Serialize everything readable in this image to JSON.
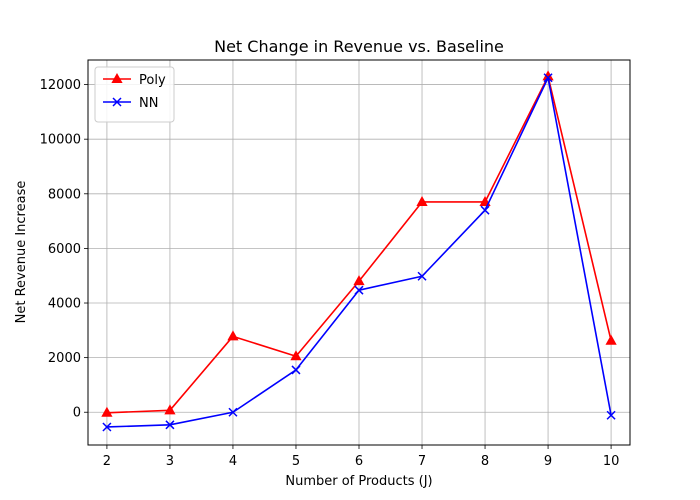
{
  "chart_data": {
    "type": "line",
    "title": "Net Change in Revenue vs. Baseline",
    "xlabel": "Number of Products (J)",
    "ylabel": "Net Revenue Increase",
    "x": [
      2,
      3,
      4,
      5,
      6,
      7,
      8,
      9,
      10
    ],
    "xlim": [
      1.7,
      10.3
    ],
    "ylim": [
      -1200,
      12900
    ],
    "xticks": [
      2,
      3,
      4,
      5,
      6,
      7,
      8,
      9,
      10
    ],
    "yticks": [
      0,
      2000,
      4000,
      6000,
      8000,
      10000,
      12000
    ],
    "grid": true,
    "legend_position": "top-left",
    "series": [
      {
        "name": "Poly",
        "color": "#ff0000",
        "marker": "triangle",
        "values": [
          -20,
          70,
          2780,
          2050,
          4800,
          7700,
          7700,
          12300,
          2620
        ]
      },
      {
        "name": "NN",
        "color": "#0000ff",
        "marker": "x",
        "values": [
          -540,
          -460,
          0,
          1550,
          4470,
          4980,
          7400,
          12250,
          -110
        ]
      }
    ]
  }
}
